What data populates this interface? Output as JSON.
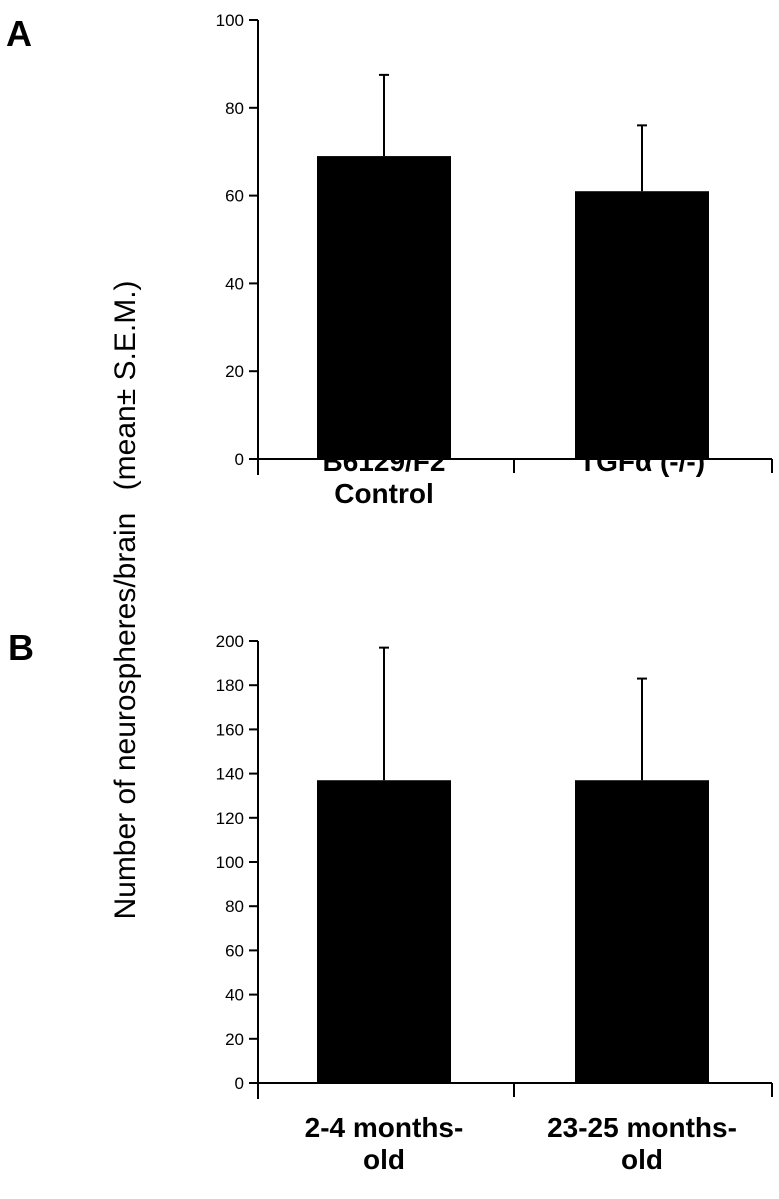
{
  "ylabel_main": "Number of neurospheres/brain",
  "ylabel_paren": "(mean± S.E.M.)",
  "chart_data": [
    {
      "type": "bar",
      "panel": "A",
      "categories": [
        [
          "B6129/F2",
          "Control"
        ],
        [
          "TGFα (-/-)"
        ]
      ],
      "values": [
        69,
        61
      ],
      "errors": [
        18.5,
        15
      ],
      "ylim": [
        0,
        100
      ],
      "yticks": [
        0,
        20,
        40,
        60,
        80,
        100
      ]
    },
    {
      "type": "bar",
      "panel": "B",
      "categories": [
        [
          "2-4 months-",
          "old"
        ],
        [
          "23-25 months-",
          "old"
        ]
      ],
      "values": [
        137,
        137
      ],
      "errors": [
        60,
        46
      ],
      "ylim": [
        0,
        200
      ],
      "yticks": [
        0,
        20,
        40,
        60,
        80,
        100,
        120,
        140,
        160,
        180,
        200
      ]
    }
  ]
}
